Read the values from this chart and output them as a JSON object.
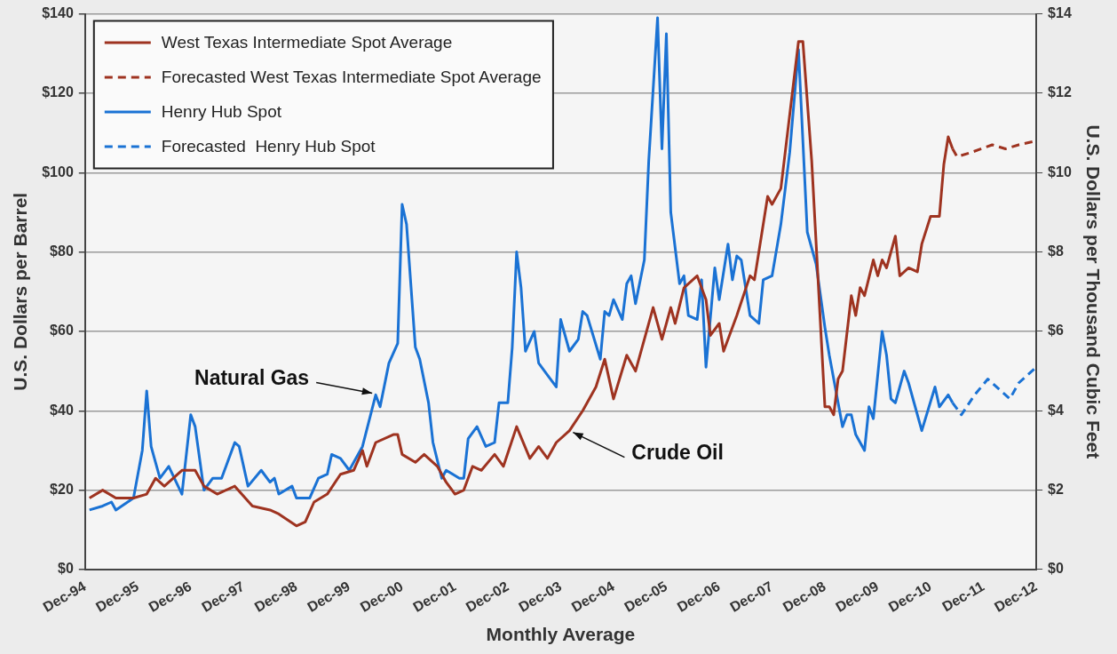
{
  "chart_data": {
    "type": "line",
    "xlabel": "Monthly Average",
    "ylabel": "U.S. Dollars per Barrel",
    "y2label": "U.S. Dollars per Thousand Cubic Feet",
    "xlim": [
      "1994-12",
      "2012-12"
    ],
    "xticks": [
      {
        "value": "1994-12",
        "label": "Dec-94"
      },
      {
        "value": "1995-12",
        "label": "Dec-95"
      },
      {
        "value": "1996-12",
        "label": "Dec-96"
      },
      {
        "value": "1997-12",
        "label": "Dec-97"
      },
      {
        "value": "1998-12",
        "label": "Dec-98"
      },
      {
        "value": "1999-12",
        "label": "Dec-99"
      },
      {
        "value": "2000-12",
        "label": "Dec-00"
      },
      {
        "value": "2001-12",
        "label": "Dec-01"
      },
      {
        "value": "2002-12",
        "label": "Dec-02"
      },
      {
        "value": "2003-12",
        "label": "Dec-03"
      },
      {
        "value": "2004-12",
        "label": "Dec-04"
      },
      {
        "value": "2005-12",
        "label": "Dec-05"
      },
      {
        "value": "2006-12",
        "label": "Dec-06"
      },
      {
        "value": "2007-12",
        "label": "Dec-07"
      },
      {
        "value": "2008-12",
        "label": "Dec-08"
      },
      {
        "value": "2009-12",
        "label": "Dec-09"
      },
      {
        "value": "2010-12",
        "label": "Dec-10"
      },
      {
        "value": "2011-12",
        "label": "Dec-11"
      },
      {
        "value": "2012-12",
        "label": "Dec-12"
      }
    ],
    "ylim": [
      0,
      140
    ],
    "yticks": [
      {
        "value": 0,
        "label": "$0"
      },
      {
        "value": 20,
        "label": "$20"
      },
      {
        "value": 40,
        "label": "$40"
      },
      {
        "value": 60,
        "label": "$60"
      },
      {
        "value": 80,
        "label": "$80"
      },
      {
        "value": 100,
        "label": "$100"
      },
      {
        "value": 120,
        "label": "$120"
      },
      {
        "value": 140,
        "label": "$140"
      }
    ],
    "y2lim": [
      0,
      14
    ],
    "y2ticks": [
      {
        "value": 0,
        "label": "$0"
      },
      {
        "value": 2,
        "label": "$2"
      },
      {
        "value": 4,
        "label": "$4"
      },
      {
        "value": 6,
        "label": "$6"
      },
      {
        "value": 8,
        "label": "$8"
      },
      {
        "value": 10,
        "label": "$10"
      },
      {
        "value": 12,
        "label": "$12"
      },
      {
        "value": 14,
        "label": "$14"
      }
    ],
    "grid": "y",
    "legend": "top left",
    "marker": "none",
    "series": [
      {
        "name": "West Texas Intermediate Spot Average",
        "color": "#9e3320",
        "line_style": "solid",
        "x": [
          "1995-01",
          "1995-04",
          "1995-07",
          "1995-11",
          "1996-02",
          "1996-04",
          "1996-06",
          "1996-10",
          "1997-01",
          "1997-03",
          "1997-06",
          "1997-10",
          "1998-02",
          "1998-06",
          "1998-08",
          "1998-12",
          "1999-02",
          "1999-04",
          "1999-07",
          "1999-10",
          "2000-01",
          "2000-03",
          "2000-04",
          "2000-06",
          "2000-10",
          "2000-11",
          "2000-12",
          "2001-03",
          "2001-05",
          "2001-08",
          "2001-10",
          "2001-12",
          "2002-02",
          "2002-04",
          "2002-06",
          "2002-09",
          "2002-11",
          "2003-02",
          "2003-05",
          "2003-07",
          "2003-09",
          "2003-11",
          "2004-02",
          "2004-05",
          "2004-08",
          "2004-10",
          "2004-12",
          "2005-03",
          "2005-05",
          "2005-09",
          "2005-11",
          "2006-01",
          "2006-02",
          "2006-04",
          "2006-07",
          "2006-09",
          "2006-10",
          "2006-12",
          "2007-01",
          "2007-04",
          "2007-07",
          "2007-08",
          "2007-11",
          "2007-12",
          "2008-02",
          "2008-06",
          "2008-07",
          "2008-09",
          "2008-12",
          "2009-01",
          "2009-02",
          "2009-03",
          "2009-04",
          "2009-06",
          "2009-07",
          "2009-08",
          "2009-09",
          "2009-11",
          "2009-12",
          "2010-01",
          "2010-02",
          "2010-04",
          "2010-05",
          "2010-07",
          "2010-09",
          "2010-10",
          "2010-12",
          "2011-02",
          "2011-03",
          "2011-04",
          "2011-05"
        ],
        "values": [
          18,
          20,
          18,
          18,
          19,
          23,
          21,
          25,
          25,
          21,
          19,
          21,
          16,
          15,
          14,
          11,
          12,
          17,
          19,
          24,
          25,
          30,
          26,
          32,
          34,
          34,
          29,
          27,
          29,
          26,
          22,
          19,
          20,
          26,
          25,
          29,
          26,
          36,
          28,
          31,
          28,
          32,
          35,
          40,
          46,
          53,
          43,
          54,
          50,
          66,
          58,
          66,
          62,
          71,
          74,
          68,
          59,
          62,
          55,
          64,
          74,
          73,
          94,
          92,
          96,
          133,
          133,
          103,
          41,
          41,
          39,
          48,
          50,
          69,
          64,
          71,
          69,
          78,
          74,
          78,
          76,
          84,
          74,
          76,
          75,
          82,
          89,
          89,
          102,
          109,
          106
        ]
      },
      {
        "name": "Forecasted West Texas Intermediate Spot Average",
        "color": "#9e3320",
        "line_style": "dashed",
        "x": [
          "2011-05",
          "2011-06",
          "2011-09",
          "2012-02",
          "2012-05",
          "2012-08",
          "2012-12"
        ],
        "values": [
          106,
          104,
          105,
          107,
          106,
          107,
          108
        ]
      },
      {
        "name": "Henry Hub Spot",
        "color": "#1a72d4",
        "line_style": "solid",
        "axis": "y2",
        "x": [
          "1995-01",
          "1995-04",
          "1995-06",
          "1995-07",
          "1995-11",
          "1996-01",
          "1996-02",
          "1996-03",
          "1996-05",
          "1996-07",
          "1996-10",
          "1996-12",
          "1997-01",
          "1997-03",
          "1997-05",
          "1997-07",
          "1997-10",
          "1997-11",
          "1998-01",
          "1998-04",
          "1998-06",
          "1998-07",
          "1998-08",
          "1998-11",
          "1998-12",
          "1999-03",
          "1999-05",
          "1999-07",
          "1999-08",
          "1999-10",
          "1999-12",
          "2000-03",
          "2000-06",
          "2000-07",
          "2000-09",
          "2000-11",
          "2000-12",
          "2001-01",
          "2001-03",
          "2001-04",
          "2001-06",
          "2001-07",
          "2001-09",
          "2001-10",
          "2002-01",
          "2002-02",
          "2002-03",
          "2002-05",
          "2002-07",
          "2002-09",
          "2002-10",
          "2002-12",
          "2003-01",
          "2003-02",
          "2003-03",
          "2003-04",
          "2003-06",
          "2003-07",
          "2003-09",
          "2003-11",
          "2003-12",
          "2004-02",
          "2004-04",
          "2004-05",
          "2004-06",
          "2004-09",
          "2004-10",
          "2004-11",
          "2004-12",
          "2005-02",
          "2005-03",
          "2005-04",
          "2005-05",
          "2005-07",
          "2005-08",
          "2005-10",
          "2005-11",
          "2005-12",
          "2006-01",
          "2006-03",
          "2006-04",
          "2006-05",
          "2006-07",
          "2006-08",
          "2006-09",
          "2006-11",
          "2006-12",
          "2007-02",
          "2007-03",
          "2007-04",
          "2007-05",
          "2007-07",
          "2007-09",
          "2007-10",
          "2007-12",
          "2008-02",
          "2008-04",
          "2008-06",
          "2008-08",
          "2008-10",
          "2008-11",
          "2008-12",
          "2009-01",
          "2009-04",
          "2009-05",
          "2009-06",
          "2009-07",
          "2009-09",
          "2009-10",
          "2009-11",
          "2010-01",
          "2010-02",
          "2010-03",
          "2010-04",
          "2010-06",
          "2010-07",
          "2010-10",
          "2011-01",
          "2011-02",
          "2011-04",
          "2011-05"
        ],
        "values": [
          1.5,
          1.6,
          1.7,
          1.5,
          1.8,
          3.0,
          4.5,
          3.1,
          2.3,
          2.6,
          1.9,
          3.9,
          3.6,
          2.0,
          2.3,
          2.3,
          3.2,
          3.1,
          2.1,
          2.5,
          2.2,
          2.3,
          1.9,
          2.1,
          1.8,
          1.8,
          2.3,
          2.4,
          2.9,
          2.8,
          2.5,
          3.1,
          4.4,
          4.1,
          5.2,
          5.7,
          9.2,
          8.7,
          5.6,
          5.3,
          4.2,
          3.2,
          2.3,
          2.5,
          2.3,
          2.3,
          3.3,
          3.6,
          3.1,
          3.2,
          4.2,
          4.2,
          5.6,
          8.0,
          7.1,
          5.5,
          6.0,
          5.2,
          4.9,
          4.6,
          6.3,
          5.5,
          5.8,
          6.5,
          6.4,
          5.3,
          6.5,
          6.4,
          6.8,
          6.3,
          7.2,
          7.4,
          6.7,
          7.8,
          10.3,
          13.9,
          10.6,
          13.5,
          9.0,
          7.2,
          7.4,
          6.4,
          6.3,
          7.3,
          5.1,
          7.6,
          6.8,
          8.2,
          7.3,
          7.9,
          7.8,
          6.4,
          6.2,
          7.3,
          7.4,
          8.7,
          10.5,
          13.1,
          8.5,
          7.7,
          6.9,
          6.1,
          5.4,
          3.6,
          3.9,
          3.9,
          3.4,
          3.0,
          4.1,
          3.8,
          6.0,
          5.4,
          4.3,
          4.2,
          5.0,
          4.7,
          3.5,
          4.6,
          4.1,
          4.4,
          4.2
        ]
      },
      {
        "name": "Forecasted  Henry Hub Spot",
        "color": "#1a72d4",
        "line_style": "dashed",
        "axis": "y2",
        "x": [
          "2011-05",
          "2011-07",
          "2011-10",
          "2012-01",
          "2012-02",
          "2012-06",
          "2012-08",
          "2012-12"
        ],
        "values": [
          4.2,
          3.9,
          4.4,
          4.8,
          4.7,
          4.3,
          4.7,
          5.1
        ]
      }
    ],
    "annotations": [
      {
        "text": "Natural Gas",
        "x": "2000-06",
        "y": 44
      },
      {
        "text": "Crude Oil",
        "x": "2004-02",
        "y": 35
      }
    ]
  }
}
